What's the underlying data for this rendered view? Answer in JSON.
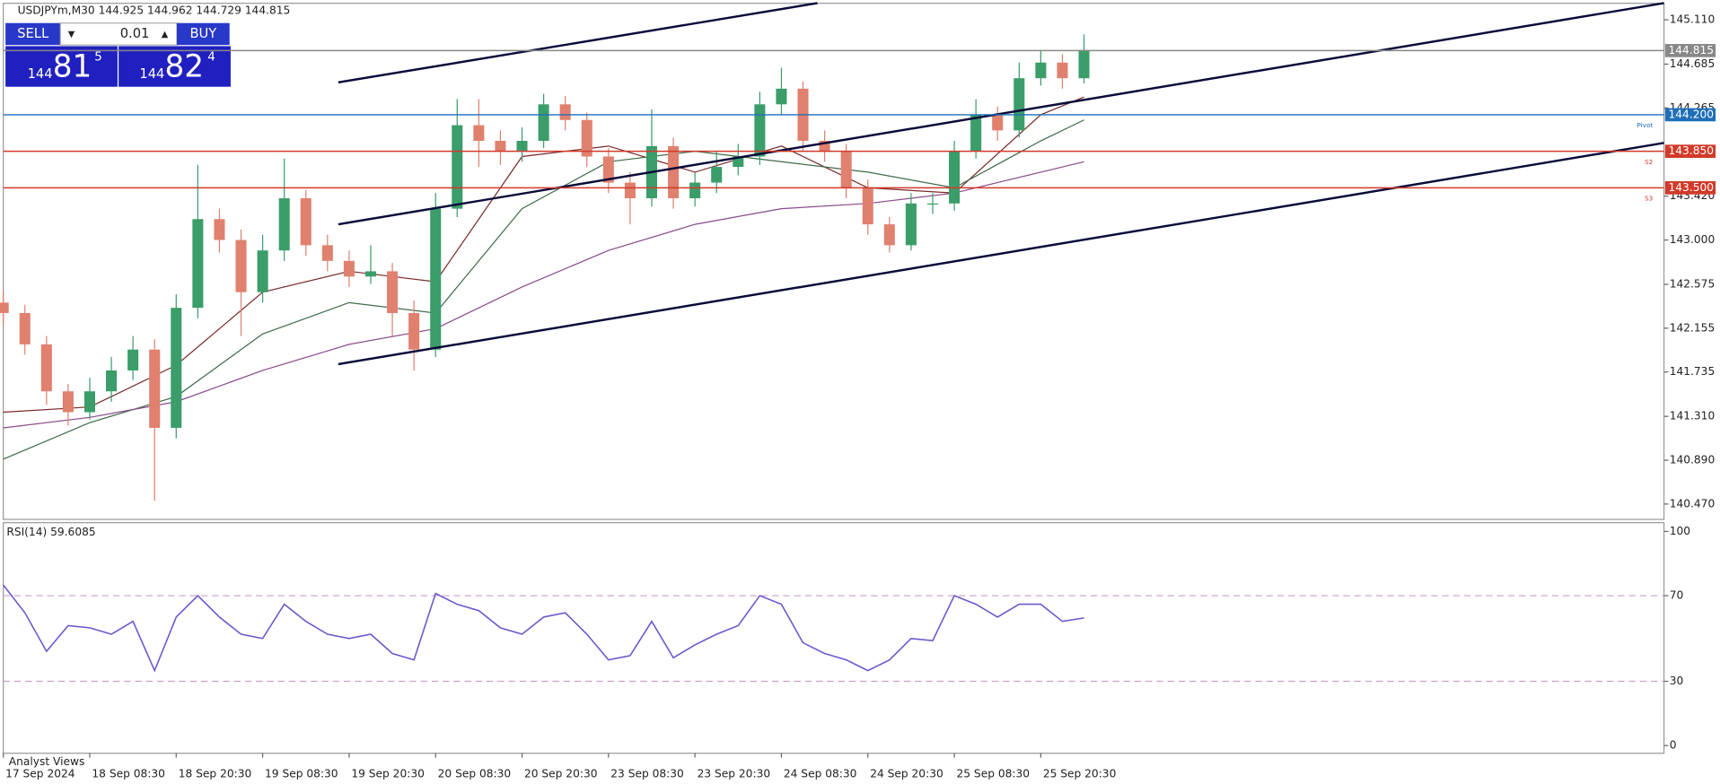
{
  "header": {
    "symbol": "USDJPYm,M30 144.925 144.962 144.729 144.815",
    "rsi_label": "RSI(14) 59.6085",
    "footer": "Analyst Views"
  },
  "trade": {
    "sell": "SELL",
    "buy": "BUY",
    "lot": "0.01",
    "bid_big": "144",
    "bid_main": "81",
    "bid_small": "5",
    "ask_big": "144",
    "ask_main": "82",
    "ask_small": "4"
  },
  "chart_data": {
    "type": "candlestick",
    "up_color": "#3a9d6a",
    "down_color": "#e0806e",
    "xlim": [
      0,
      461
    ],
    "xticks": [
      {
        "value": 0,
        "label": "17 Sep 2024"
      },
      {
        "value": 24,
        "label": "18 Sep 08:30"
      },
      {
        "value": 48,
        "label": "18 Sep 20:30"
      },
      {
        "value": 72,
        "label": "19 Sep 08:30"
      },
      {
        "value": 96,
        "label": "19 Sep 20:30"
      },
      {
        "value": 120,
        "label": "20 Sep 08:30"
      },
      {
        "value": 144,
        "label": "20 Sep 20:30"
      },
      {
        "value": 168,
        "label": "23 Sep 08:30"
      },
      {
        "value": 192,
        "label": "23 Sep 20:30"
      },
      {
        "value": 216,
        "label": "24 Sep 08:30"
      },
      {
        "value": 240,
        "label": "24 Sep 20:30"
      },
      {
        "value": 264,
        "label": "25 Sep 08:30"
      },
      {
        "value": 288,
        "label": "25 Sep 20:30"
      }
    ],
    "ylim": [
      140.323,
      145.268
    ],
    "yticks": [
      {
        "value": 145.11,
        "label": "145.110"
      },
      144.685,
      144.265,
      {
        "value": 143.42,
        "label": "143.420"
      },
      {
        "value": 143.0,
        "label": "143.000"
      },
      142.575,
      142.155,
      141.735,
      {
        "value": 141.31,
        "label": "141.310"
      },
      {
        "value": 140.89,
        "label": "140.890"
      },
      {
        "value": 140.47,
        "label": "140.470"
      }
    ],
    "x": [
      0,
      6,
      12,
      18,
      24,
      30,
      36,
      42,
      48,
      54,
      60,
      66,
      72,
      78,
      84,
      90,
      96,
      102,
      108,
      114,
      120,
      126,
      132,
      138,
      144,
      150,
      156,
      162,
      168,
      174,
      180,
      186,
      192,
      198,
      204,
      210,
      216,
      222,
      228,
      234,
      240,
      246,
      252,
      258,
      264,
      270,
      276,
      282,
      288,
      294,
      300
    ],
    "ohlc": [
      [
        142.4,
        142.52,
        142.18,
        142.3
      ],
      [
        142.3,
        142.38,
        141.9,
        142.0
      ],
      [
        142.0,
        142.08,
        141.42,
        141.55
      ],
      [
        141.55,
        141.62,
        141.22,
        141.35
      ],
      [
        141.35,
        141.68,
        141.28,
        141.55
      ],
      [
        141.55,
        141.88,
        141.45,
        141.75
      ],
      [
        141.75,
        142.08,
        141.66,
        141.95
      ],
      [
        141.95,
        142.05,
        140.5,
        141.2
      ],
      [
        141.2,
        142.48,
        141.1,
        142.35
      ],
      [
        142.35,
        143.72,
        142.25,
        143.2
      ],
      [
        143.2,
        143.3,
        142.88,
        143.0
      ],
      [
        143.0,
        143.1,
        142.08,
        142.5
      ],
      [
        142.5,
        143.05,
        142.4,
        142.9
      ],
      [
        142.9,
        143.78,
        142.8,
        143.4
      ],
      [
        143.4,
        143.48,
        142.85,
        142.95
      ],
      [
        142.95,
        143.05,
        142.7,
        142.8
      ],
      [
        142.8,
        142.9,
        142.55,
        142.65
      ],
      [
        142.65,
        142.95,
        142.58,
        142.7
      ],
      [
        142.7,
        142.78,
        142.08,
        142.3
      ],
      [
        142.3,
        142.42,
        141.75,
        141.95
      ],
      [
        141.95,
        143.45,
        141.88,
        143.3
      ],
      [
        143.3,
        144.35,
        143.22,
        144.1
      ],
      [
        144.1,
        144.35,
        143.7,
        143.95
      ],
      [
        143.95,
        144.05,
        143.72,
        143.85
      ],
      [
        143.85,
        144.08,
        143.75,
        143.95
      ],
      [
        143.95,
        144.4,
        143.88,
        144.3
      ],
      [
        144.3,
        144.38,
        144.05,
        144.15
      ],
      [
        144.15,
        144.22,
        143.7,
        143.8
      ],
      [
        143.8,
        143.88,
        143.45,
        143.55
      ],
      [
        143.55,
        143.65,
        143.15,
        143.4
      ],
      [
        143.4,
        144.25,
        143.32,
        143.9
      ],
      [
        143.9,
        143.98,
        143.3,
        143.4
      ],
      [
        143.4,
        143.65,
        143.32,
        143.55
      ],
      [
        143.55,
        143.85,
        143.45,
        143.7
      ],
      [
        143.7,
        143.92,
        143.62,
        143.8
      ],
      [
        143.8,
        144.42,
        143.72,
        144.3
      ],
      [
        144.3,
        144.65,
        144.2,
        144.45
      ],
      [
        144.45,
        144.52,
        143.85,
        143.95
      ],
      [
        143.95,
        144.05,
        143.75,
        143.85
      ],
      [
        143.85,
        143.92,
        143.4,
        143.5
      ],
      [
        143.5,
        143.58,
        143.05,
        143.15
      ],
      [
        143.15,
        143.22,
        142.88,
        142.95
      ],
      [
        142.95,
        143.45,
        142.9,
        143.35
      ],
      [
        143.35,
        143.45,
        143.25,
        143.35
      ],
      [
        143.35,
        143.95,
        143.28,
        143.85
      ],
      [
        143.85,
        144.35,
        143.78,
        144.2
      ],
      [
        144.2,
        144.28,
        143.95,
        144.05
      ],
      [
        144.05,
        144.7,
        143.98,
        144.55
      ],
      [
        144.55,
        144.82,
        144.48,
        144.7
      ],
      [
        144.7,
        144.78,
        144.45,
        144.55
      ],
      [
        144.55,
        144.97,
        144.5,
        144.82
      ]
    ],
    "averages": [
      {
        "color": "#7a2a2a",
        "x": [
          0,
          24,
          48,
          72,
          96,
          120,
          144,
          168,
          192,
          216,
          240,
          264,
          288,
          300
        ],
        "values": [
          141.35,
          141.4,
          141.8,
          142.5,
          142.7,
          142.6,
          143.8,
          143.9,
          143.65,
          143.9,
          143.5,
          143.45,
          144.2,
          144.37
        ]
      },
      {
        "color": "#3f6b4a",
        "x": [
          0,
          24,
          48,
          72,
          96,
          120,
          144,
          168,
          192,
          216,
          240,
          264,
          288,
          300
        ],
        "values": [
          140.9,
          141.25,
          141.5,
          142.1,
          142.4,
          142.3,
          143.3,
          143.75,
          143.85,
          143.75,
          143.65,
          143.5,
          143.95,
          144.15
        ]
      },
      {
        "color": "#8a4a8a",
        "x": [
          0,
          24,
          48,
          72,
          96,
          120,
          144,
          168,
          192,
          216,
          240,
          264,
          288,
          300
        ],
        "values": [
          141.2,
          141.3,
          141.45,
          141.75,
          142.0,
          142.15,
          142.55,
          142.9,
          143.15,
          143.3,
          143.35,
          143.45,
          143.65,
          143.75
        ]
      }
    ],
    "trendlines": [
      {
        "x": [
          93,
          226
        ],
        "values": [
          144.51,
          145.27
        ]
      },
      {
        "x": [
          93,
          461
        ],
        "values": [
          143.15,
          145.27
        ]
      },
      {
        "x": [
          93,
          461
        ],
        "values": [
          141.81,
          143.93
        ]
      }
    ],
    "levels": [
      {
        "value": 144.815,
        "label": "144.815",
        "color": "#888888"
      },
      {
        "value": 144.2,
        "label": "144.200",
        "color": "#1f6fb8",
        "tag": "Pivot"
      },
      {
        "value": 143.85,
        "label": "143.850",
        "color": "#d23a2a",
        "tag": "S2"
      },
      {
        "value": 143.5,
        "label": "143.500",
        "color": "#d23a2a",
        "tag": "S3"
      }
    ],
    "rsi": {
      "color": "#6a5acd",
      "ylim": [
        -3.6,
        104.1
      ],
      "yticks": [
        100,
        70,
        30,
        0
      ],
      "levels": [
        70,
        30
      ],
      "values": [
        75,
        62,
        44,
        56,
        55,
        52,
        58,
        35,
        60,
        70,
        60,
        52,
        50,
        66,
        58,
        52,
        50,
        52,
        43,
        40,
        71,
        66,
        63,
        55,
        52,
        60,
        62,
        52,
        40,
        42,
        58,
        41,
        47,
        52,
        56,
        70,
        66,
        48,
        43,
        40,
        35,
        40,
        50,
        49,
        70,
        66,
        60,
        66,
        66,
        58,
        59.6085
      ]
    }
  }
}
